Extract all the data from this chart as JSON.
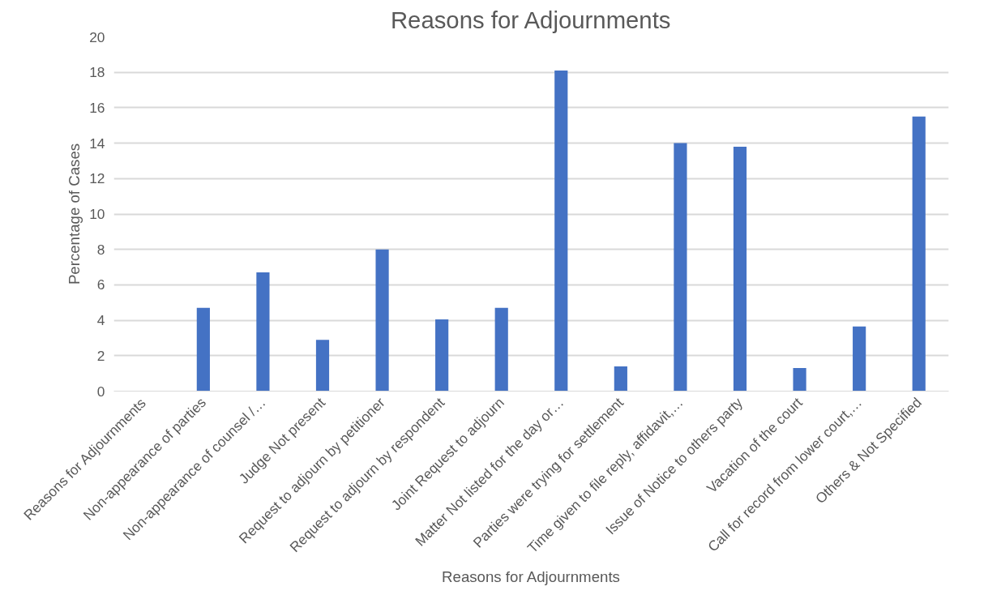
{
  "chart_data": {
    "type": "bar",
    "title": "Reasons for Adjournments",
    "xlabel": "Reasons for Adjournments",
    "ylabel": "Percentage of Cases",
    "categories": [
      "Reasons for Adjournments",
      "Non-appearance of parties",
      "Non-appearance of counsel /…",
      "Judge Not present",
      "Request to adjourn by petitioner",
      "Request to adjourn by respondent",
      "Joint Request to adjourn",
      "Matter Not listed for the day or…",
      "Parties were trying for settlement",
      "Time given to file reply, affidavit,…",
      "Issue of Notice to others party",
      "Vacation of the court",
      "Call for record from lower court,…",
      "Others & Not Specified"
    ],
    "values": [
      null,
      4.7,
      6.7,
      2.9,
      8.0,
      4.05,
      4.7,
      18.1,
      1.4,
      14.0,
      13.8,
      1.3,
      3.65,
      15.5
    ],
    "color": "#4472c4",
    "ylim": [
      0,
      20
    ],
    "yticks": [
      0,
      2,
      4,
      6,
      8,
      10,
      12,
      14,
      16,
      18,
      20
    ],
    "grid": "y"
  }
}
